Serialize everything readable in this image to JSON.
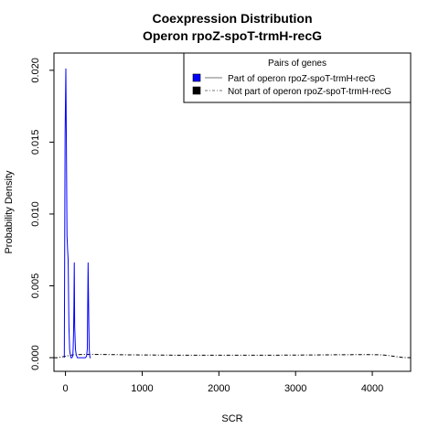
{
  "chart_data": {
    "type": "line",
    "title": "Coexpression Distribution",
    "subtitle": "Operon rpoZ-spoT-trmH-recG",
    "xlabel": "SCR",
    "ylabel": "Probability Density",
    "xlim": [
      -150,
      4500
    ],
    "ylim": [
      -0.00095,
      0.0212
    ],
    "x_ticks": [
      0,
      1000,
      2000,
      3000,
      4000
    ],
    "x_tick_labels": [
      "0",
      "1000",
      "2000",
      "3000",
      "4000"
    ],
    "y_ticks": [
      0.0,
      0.005,
      0.01,
      0.015,
      0.02
    ],
    "y_tick_labels": [
      "0.000",
      "0.005",
      "0.010",
      "0.015",
      "0.020"
    ],
    "grid": false,
    "legend": {
      "title": "Pairs of genes",
      "position": "top-right"
    },
    "series": [
      {
        "name": "Part of operon rpoZ-spoT-trmH-recG",
        "color": "#0000ff",
        "line_style": "solid",
        "x": [
          -15,
          -5,
          5,
          12,
          20,
          28,
          35,
          45,
          55,
          70,
          85,
          95,
          100,
          105,
          110,
          115,
          120,
          130,
          140,
          155,
          170,
          185,
          200,
          220,
          240,
          260,
          275,
          285,
          295,
          305,
          310,
          315,
          320,
          330
        ],
        "y": [
          0.0,
          0.0155,
          0.0201,
          0.0148,
          0.0085,
          0.0075,
          0.0068,
          0.0022,
          0.0005,
          0.0,
          0.0,
          0.0001,
          0.0006,
          0.0016,
          0.0035,
          0.0066,
          0.0022,
          0.0006,
          0.0002,
          0.0,
          0.0,
          0.0,
          0.0,
          0.0,
          0.0,
          0.0,
          0.0001,
          0.0006,
          0.0066,
          0.0022,
          0.0006,
          0.0002,
          0.0,
          0.0
        ]
      },
      {
        "name": "Not part of operon rpoZ-spoT-trmH-recG",
        "color": "#000000",
        "line_style": "dashed",
        "x": [
          -150,
          -100,
          -50,
          0,
          50,
          100,
          200,
          300,
          500,
          800,
          1000,
          1500,
          2000,
          2500,
          3000,
          3500,
          3800,
          4000,
          4100,
          4200,
          4300,
          4400,
          4500
        ],
        "y": [
          0.0,
          0.0,
          5e-05,
          0.0001,
          0.00015,
          0.0002,
          0.00022,
          0.00023,
          0.00022,
          0.0002,
          0.00019,
          0.00017,
          0.00017,
          0.00017,
          0.00018,
          0.0002,
          0.00021,
          0.00021,
          0.0002,
          0.00016,
          8e-05,
          1e-05,
          0.0
        ]
      }
    ]
  },
  "colors": {
    "background": "#ffffff",
    "axis": "#000000",
    "legend_marker_1": "#0000ff",
    "legend_marker_2": "#000000"
  }
}
